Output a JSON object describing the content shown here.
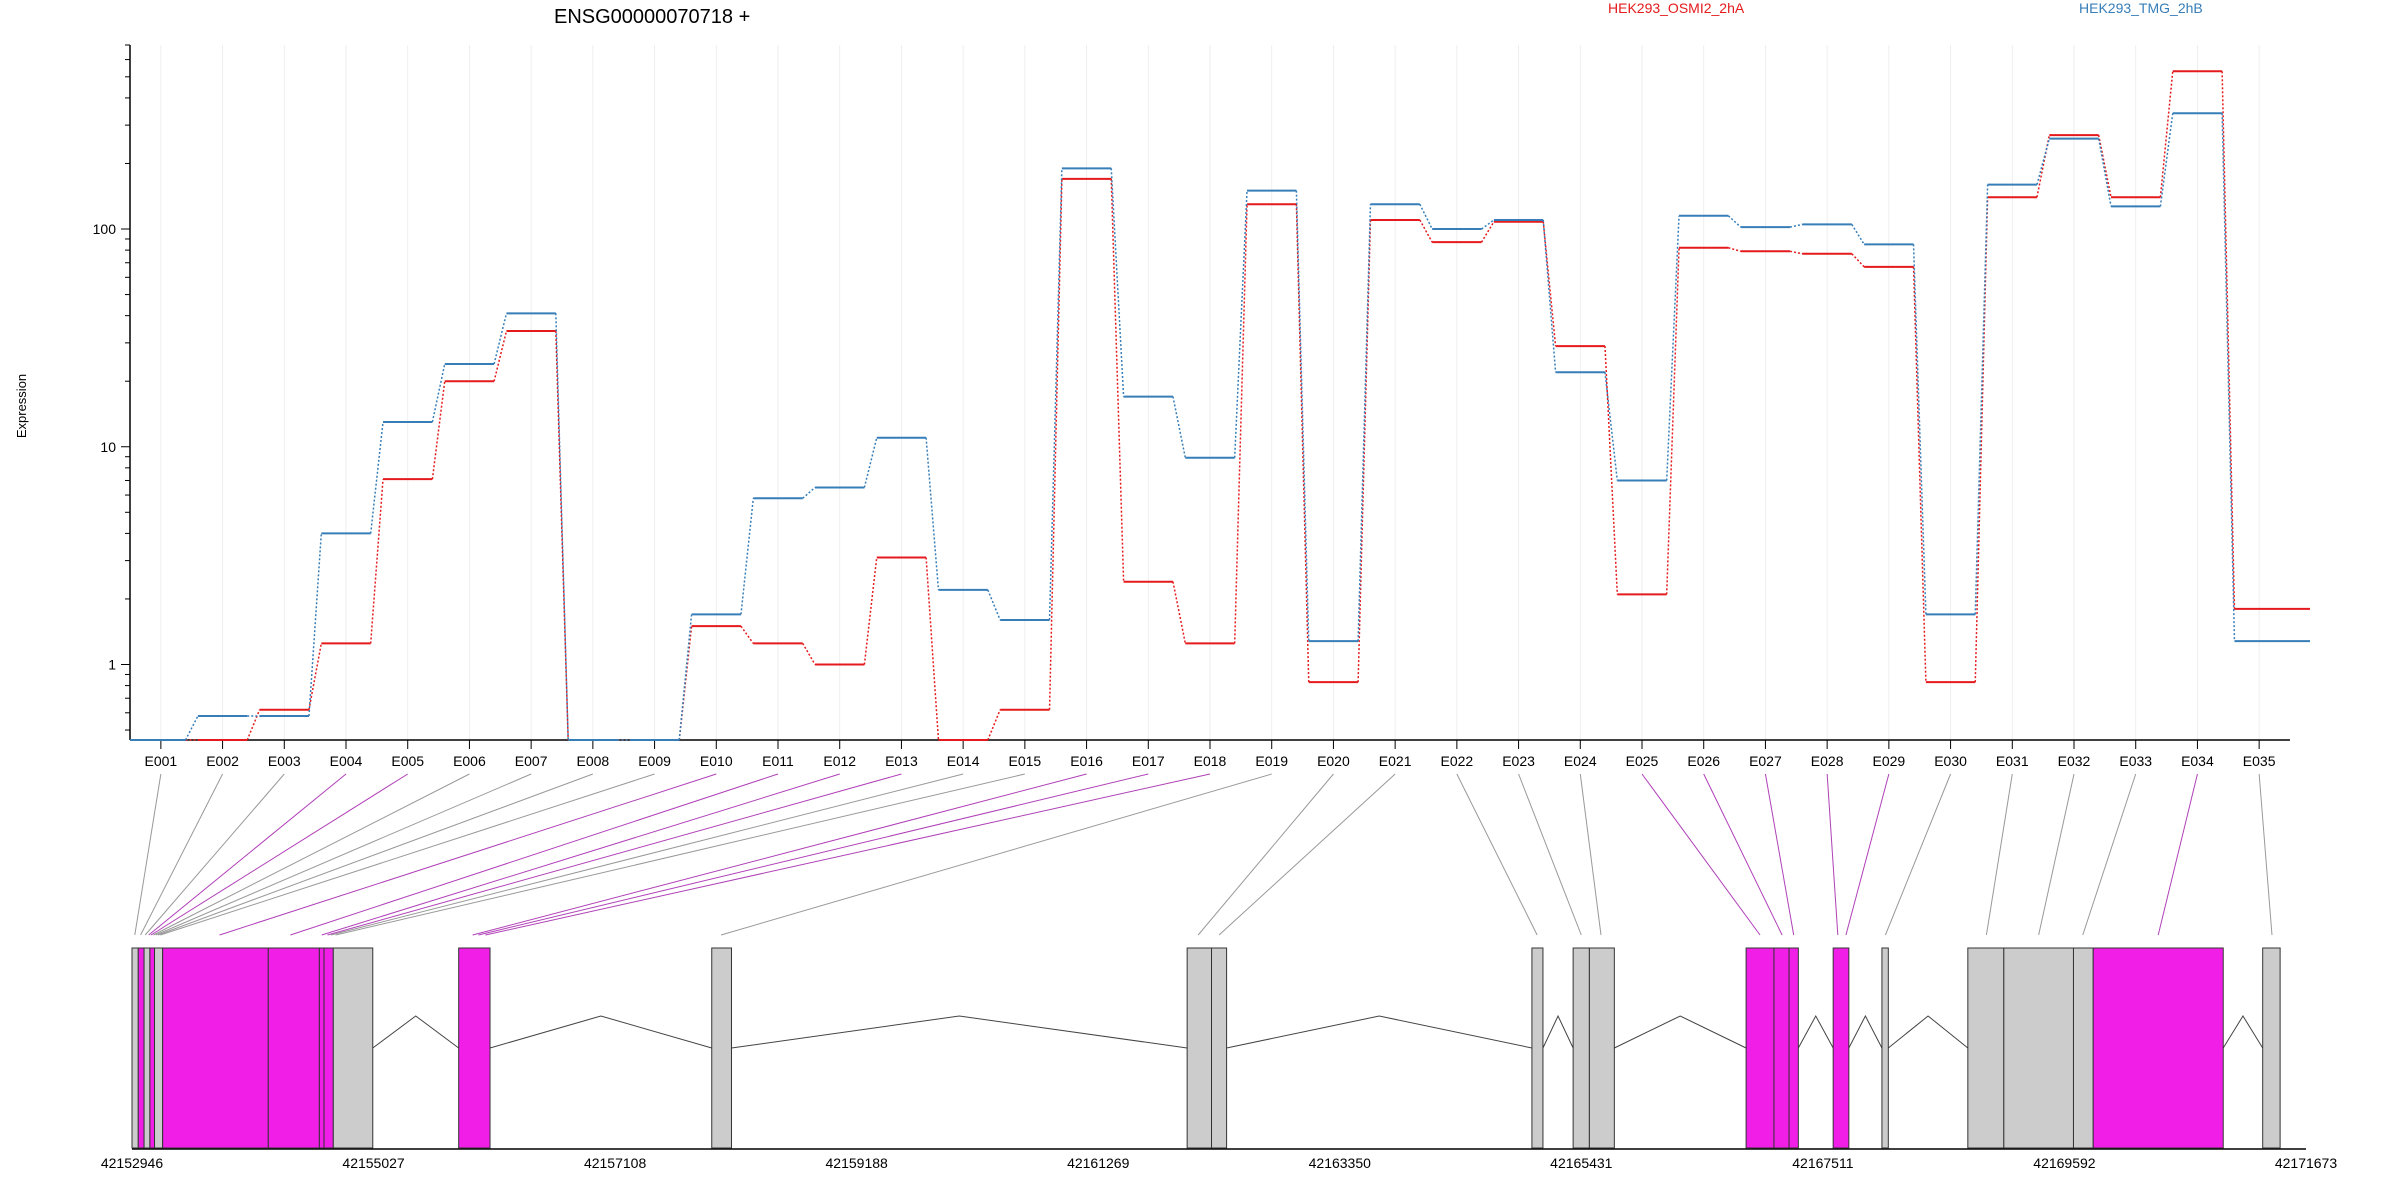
{
  "chart_data": {
    "type": "line",
    "title": "ENSG00000070718 +",
    "ylabel": "Expression",
    "yscale": "log",
    "ylim": [
      0.45,
      700
    ],
    "ytick_labels": [
      "1",
      "10",
      "100"
    ],
    "yticks": [
      1,
      10,
      100
    ],
    "categories": [
      "E001",
      "E002",
      "E003",
      "E004",
      "E005",
      "E006",
      "E007",
      "E008",
      "E009",
      "E010",
      "E011",
      "E012",
      "E013",
      "E014",
      "E015",
      "E016",
      "E017",
      "E018",
      "E019",
      "E020",
      "E021",
      "E022",
      "E023",
      "E024",
      "E025",
      "E026",
      "E027",
      "E028",
      "E029",
      "E030",
      "E031",
      "E032",
      "E033",
      "E034",
      "E035"
    ],
    "series": [
      {
        "name": "HEK293_OSMI2_2hA",
        "color": "#e41a1c",
        "values": [
          0.45,
          0.45,
          0.62,
          1.25,
          7.1,
          20,
          34,
          0.45,
          0.45,
          1.5,
          1.25,
          1.0,
          3.1,
          0.45,
          0.62,
          170,
          2.4,
          1.25,
          130,
          0.83,
          110,
          87,
          108,
          29,
          2.1,
          82,
          79,
          77,
          67,
          0.83,
          140,
          270,
          140,
          530,
          1.8
        ]
      },
      {
        "name": "HEK293_TMG_2hB",
        "color": "#377eb8",
        "values": [
          0.45,
          0.58,
          0.58,
          4.0,
          13,
          24,
          41,
          0.45,
          0.45,
          1.7,
          5.8,
          6.5,
          11,
          2.2,
          1.6,
          190,
          17,
          8.9,
          150,
          1.28,
          130,
          100,
          110,
          22,
          7,
          115,
          102,
          105,
          85,
          1.7,
          160,
          260,
          127,
          340,
          1.28
        ]
      }
    ],
    "genome_axis": {
      "tick_labels": [
        "42152946",
        "42155027",
        "42157108",
        "42159188",
        "42161269",
        "42163350",
        "42165431",
        "42167511",
        "42169592",
        "42171673"
      ],
      "range": [
        42152946,
        42171673
      ]
    },
    "exons": [
      {
        "start": 42152946,
        "end": 42153000,
        "highlight": false
      },
      {
        "start": 42153000,
        "end": 42153050,
        "highlight": true
      },
      {
        "start": 42153050,
        "end": 42153100,
        "highlight": false
      },
      {
        "start": 42153100,
        "end": 42153140,
        "highlight": true
      },
      {
        "start": 42153140,
        "end": 42153210,
        "highlight": false
      },
      {
        "start": 42153210,
        "end": 42154120,
        "highlight": true
      },
      {
        "start": 42154120,
        "end": 42154560,
        "highlight": true
      },
      {
        "start": 42154560,
        "end": 42154600,
        "highlight": true
      },
      {
        "start": 42154600,
        "end": 42154680,
        "highlight": true
      },
      {
        "start": 42154680,
        "end": 42155020,
        "highlight": false
      },
      {
        "start": 42155760,
        "end": 42156030,
        "highlight": true
      },
      {
        "start": 42157940,
        "end": 42158110,
        "highlight": false
      },
      {
        "start": 42162035,
        "end": 42162245,
        "highlight": false
      },
      {
        "start": 42162245,
        "end": 42162375,
        "highlight": false
      },
      {
        "start": 42165005,
        "end": 42165100,
        "highlight": false
      },
      {
        "start": 42165360,
        "end": 42165500,
        "highlight": false
      },
      {
        "start": 42165500,
        "end": 42165715,
        "highlight": false
      },
      {
        "start": 42166850,
        "end": 42167090,
        "highlight": true
      },
      {
        "start": 42167090,
        "end": 42167220,
        "highlight": true
      },
      {
        "start": 42167220,
        "end": 42167300,
        "highlight": true
      },
      {
        "start": 42167600,
        "end": 42167735,
        "highlight": true
      },
      {
        "start": 42168020,
        "end": 42168075,
        "highlight": false
      },
      {
        "start": 42168760,
        "end": 42169070,
        "highlight": false
      },
      {
        "start": 42169070,
        "end": 42169670,
        "highlight": false
      },
      {
        "start": 42169670,
        "end": 42169840,
        "highlight": false
      },
      {
        "start": 42169840,
        "end": 42170960,
        "highlight": true
      },
      {
        "start": 42171300,
        "end": 42171450,
        "highlight": false
      }
    ],
    "exon_connectors": [
      {
        "exon": "E001",
        "pos": 42152970,
        "highlight": false
      },
      {
        "exon": "E002",
        "pos": 42153020,
        "highlight": false
      },
      {
        "exon": "E003",
        "pos": 42153060,
        "highlight": false
      },
      {
        "exon": "E004",
        "pos": 42153090,
        "highlight": true
      },
      {
        "exon": "E005",
        "pos": 42153110,
        "highlight": true
      },
      {
        "exon": "E006",
        "pos": 42153130,
        "highlight": false
      },
      {
        "exon": "E007",
        "pos": 42153150,
        "highlight": false
      },
      {
        "exon": "E008",
        "pos": 42153170,
        "highlight": false
      },
      {
        "exon": "E009",
        "pos": 42153190,
        "highlight": false
      },
      {
        "exon": "E010",
        "pos": 42153700,
        "highlight": true
      },
      {
        "exon": "E011",
        "pos": 42154310,
        "highlight": true
      },
      {
        "exon": "E012",
        "pos": 42154580,
        "highlight": true
      },
      {
        "exon": "E013",
        "pos": 42154630,
        "highlight": true
      },
      {
        "exon": "E014",
        "pos": 42154660,
        "highlight": false
      },
      {
        "exon": "E015",
        "pos": 42154700,
        "highlight": false
      },
      {
        "exon": "E016",
        "pos": 42155880,
        "highlight": true
      },
      {
        "exon": "E017",
        "pos": 42155930,
        "highlight": true
      },
      {
        "exon": "E018",
        "pos": 42155990,
        "highlight": true
      },
      {
        "exon": "E019",
        "pos": 42158020,
        "highlight": false
      },
      {
        "exon": "E020",
        "pos": 42162130,
        "highlight": false
      },
      {
        "exon": "E021",
        "pos": 42162310,
        "highlight": false
      },
      {
        "exon": "E022",
        "pos": 42165050,
        "highlight": false
      },
      {
        "exon": "E023",
        "pos": 42165430,
        "highlight": false
      },
      {
        "exon": "E024",
        "pos": 42165600,
        "highlight": false
      },
      {
        "exon": "E025",
        "pos": 42166970,
        "highlight": true
      },
      {
        "exon": "E026",
        "pos": 42167160,
        "highlight": true
      },
      {
        "exon": "E027",
        "pos": 42167260,
        "highlight": true
      },
      {
        "exon": "E028",
        "pos": 42167640,
        "highlight": true
      },
      {
        "exon": "E029",
        "pos": 42167710,
        "highlight": true
      },
      {
        "exon": "E030",
        "pos": 42168050,
        "highlight": false
      },
      {
        "exon": "E031",
        "pos": 42168920,
        "highlight": false
      },
      {
        "exon": "E032",
        "pos": 42169370,
        "highlight": false
      },
      {
        "exon": "E033",
        "pos": 42169750,
        "highlight": false
      },
      {
        "exon": "E034",
        "pos": 42170400,
        "highlight": true
      },
      {
        "exon": "E035",
        "pos": 42171380,
        "highlight": false
      }
    ],
    "colors": {
      "highlight_exon": "#f01ee6",
      "plain_exon": "#cccccc",
      "connector_plain": "#999999",
      "connector_highlight": "#b040b8",
      "grid": "#eeeeee"
    },
    "grid": true,
    "legend_position": "top-right"
  }
}
